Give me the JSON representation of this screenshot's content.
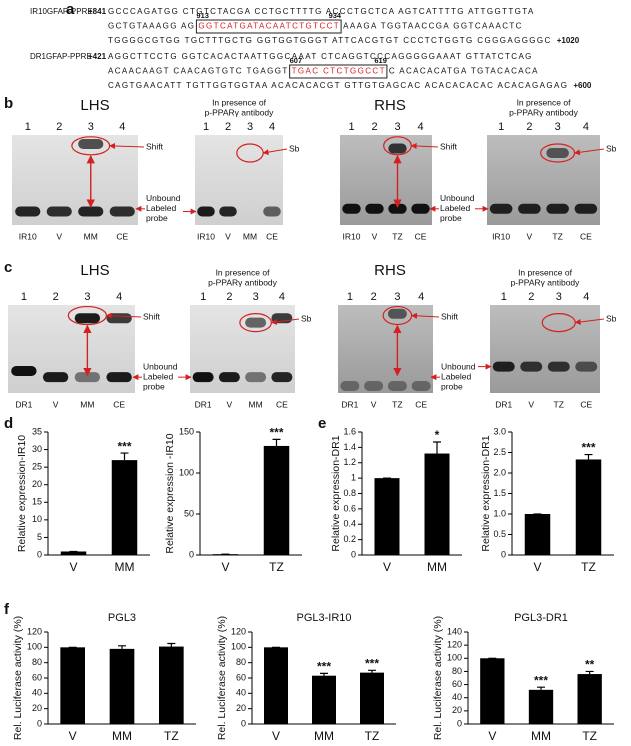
{
  "panel_a": {
    "label": "a",
    "sequences": [
      {
        "name": "IR10GFAP-PPRE",
        "start": "+841",
        "end": "+1020",
        "positions": [
          "913",
          "934"
        ],
        "lines": [
          [
            {
              "text": "GCCCAGATGG CTGTCTACGA CCTGCTTTTG ACCCTGCTCA AGTCATTTTG ATTGGTTGTA"
            }
          ],
          [
            {
              "text": "GCTGTAAAGG AG"
            },
            {
              "text": "GGTCATGATACAATCTGTCCT",
              "highlight": true
            },
            {
              "text": "AAAGA TGGTAACCGA GGTCAAACTC"
            }
          ],
          [
            {
              "text": "TGGGGCGTGG TGCTTTGCTG GGTGGTGGGT ATTCACGTGT CCCTCTGGTG CGGGAGGGGC"
            }
          ]
        ]
      },
      {
        "name": "DR1GFAP-PPRE",
        "start": "+421",
        "end": "+600",
        "positions": [
          "607",
          "619"
        ],
        "lines": [
          [
            {
              "text": "AGGCTTCCTG GGTCACACTAATTGGCAAAT CTCAGGTCCCAGGGGGAAAT GTTATCTCAG"
            }
          ],
          [
            {
              "text": "ACAACAAGT CAACAGTGTC TGAGGT"
            },
            {
              "text": "TGAC CTCTGGCCT",
              "highlight": true
            },
            {
              "text": "C ACACACATGA TGTACACACA"
            }
          ],
          [
            {
              "text": "CAGTGAACATT TGTTGGTGGTAA ACACACACGT GTTGTGAGCAC ACACACACAC ACACAGAGAG"
            }
          ]
        ]
      }
    ]
  },
  "panel_b": {
    "label": "b",
    "left_title": "LHS",
    "right_title": "RHS",
    "gels": [
      {
        "lanes": [
          "1",
          "2",
          "3",
          "4"
        ],
        "samples": [
          "IR10",
          "V",
          "MM",
          "CE"
        ],
        "shift_label": "Shift",
        "probe_label": [
          "Unbound",
          "Labeled",
          "probe"
        ]
      },
      {
        "subtitle": [
          "In presence of",
          "p-PPARγ antibody"
        ],
        "lanes": [
          "1",
          "2",
          "3",
          "4"
        ],
        "samples": [
          "IR10",
          "V",
          "MM",
          "CE"
        ],
        "sb_label": "Sb"
      },
      {
        "lanes": [
          "1",
          "2",
          "3",
          "4"
        ],
        "samples": [
          "IR10",
          "V",
          "TZ",
          "CE"
        ],
        "shift_label": "Shift",
        "probe_label": [
          "Unbound",
          "Labeled",
          "probe"
        ]
      },
      {
        "subtitle": [
          "In presence of",
          "p-PPARγ antibody"
        ],
        "lanes": [
          "1",
          "2",
          "3",
          "4"
        ],
        "samples": [
          "IR10",
          "V",
          "TZ",
          "CE"
        ],
        "sb_label": "Sb"
      }
    ]
  },
  "panel_c": {
    "label": "c",
    "left_title": "LHS",
    "right_title": "RHS",
    "gels": [
      {
        "lanes": [
          "1",
          "2",
          "3",
          "4"
        ],
        "samples": [
          "DR1",
          "V",
          "MM",
          "CE"
        ],
        "shift_label": "Shift",
        "probe_label": [
          "Unbound",
          "Labeled",
          "probe"
        ]
      },
      {
        "subtitle": [
          "In presence of",
          "p-PPARγ antibody"
        ],
        "lanes": [
          "1",
          "2",
          "3",
          "4"
        ],
        "samples": [
          "DR1",
          "V",
          "MM",
          "CE"
        ],
        "sb_label": "Sb"
      },
      {
        "lanes": [
          "1",
          "2",
          "3",
          "4"
        ],
        "samples": [
          "DR1",
          "V",
          "TZ",
          "CE"
        ],
        "shift_label": "Shift",
        "probe_label": [
          "Unbound",
          "Labeled",
          "probe"
        ]
      },
      {
        "subtitle": [
          "In presence of",
          "p-PPARγ antibody"
        ],
        "lanes": [
          "1",
          "2",
          "3",
          "4"
        ],
        "samples": [
          "DR1",
          "V",
          "TZ",
          "CE"
        ],
        "sb_label": "Sb"
      }
    ]
  },
  "panel_d": {
    "label": "d"
  },
  "panel_e": {
    "label": "e"
  },
  "panel_f": {
    "label": "f"
  },
  "chart_data": [
    {
      "type": "bar",
      "ylabel": "Relative  expression-IR10",
      "categories": [
        "V",
        "MM"
      ],
      "values": [
        1,
        27
      ],
      "errors": [
        0,
        2
      ],
      "significance": [
        null,
        "***"
      ],
      "color": "#000000",
      "ylim": [
        0,
        35
      ],
      "yticks": [
        0,
        5,
        10,
        15,
        20,
        25,
        30,
        35
      ]
    },
    {
      "type": "bar",
      "ylabel": "Relative  expression -IR10",
      "categories": [
        "V",
        "TZ"
      ],
      "values": [
        1,
        133
      ],
      "errors": [
        0,
        8
      ],
      "significance": [
        null,
        "***"
      ],
      "color": "#000000",
      "ylim": [
        0,
        150
      ],
      "yticks": [
        0,
        50,
        100,
        150
      ]
    },
    {
      "type": "bar",
      "ylabel": "Relative expression-DR1",
      "categories": [
        "V",
        "MM"
      ],
      "values": [
        1,
        1.32
      ],
      "errors": [
        0,
        0.15
      ],
      "significance": [
        null,
        "*"
      ],
      "color": "#000000",
      "ylim": [
        0,
        1.6
      ],
      "yticks": [
        0,
        0.2,
        0.4,
        0.6,
        0.8,
        1,
        1.2,
        1.4,
        1.6
      ]
    },
    {
      "type": "bar",
      "ylabel": "Relative expression-DR1",
      "categories": [
        "V",
        "TZ"
      ],
      "values": [
        1,
        2.33
      ],
      "errors": [
        0,
        0.12
      ],
      "significance": [
        null,
        "***"
      ],
      "color": "#000000",
      "ylim": [
        0,
        3
      ],
      "yticks": [
        0,
        0.5,
        {
          "value": 1,
          "label": "1.0"
        },
        1.5,
        {
          "value": 2,
          "label": "2.0"
        },
        2.5,
        {
          "value": 3,
          "label": "3.0"
        }
      ]
    },
    {
      "type": "bar",
      "title": "PGL3",
      "ylabel": "Rel. Luciferase activity (%)",
      "categories": [
        "V",
        "MM",
        "TZ"
      ],
      "values": [
        100,
        98,
        101
      ],
      "errors": [
        0,
        4,
        4
      ],
      "significance": [
        null,
        null,
        null
      ],
      "color": "#000000",
      "ylim": [
        0,
        120
      ],
      "yticks": [
        0,
        20,
        40,
        60,
        80,
        100,
        120
      ]
    },
    {
      "type": "bar",
      "title": "PGL3-IR10",
      "ylabel": "Rel. Luciferase activity (%)",
      "categories": [
        "V",
        "MM",
        "TZ"
      ],
      "values": [
        100,
        63,
        67
      ],
      "errors": [
        0,
        3,
        3
      ],
      "significance": [
        null,
        "***",
        "***"
      ],
      "color": "#000000",
      "ylim": [
        0,
        120
      ],
      "yticks": [
        0,
        20,
        40,
        60,
        80,
        100,
        120
      ]
    },
    {
      "type": "bar",
      "title": "PGL3-DR1",
      "ylabel": "Rel. Luciferase activity (%)",
      "categories": [
        "V",
        "MM",
        "TZ"
      ],
      "values": [
        100,
        52,
        76
      ],
      "errors": [
        0,
        4,
        4
      ],
      "significance": [
        null,
        "***",
        "**"
      ],
      "color": "#000000",
      "ylim": [
        0,
        140
      ],
      "yticks": [
        0,
        20,
        40,
        60,
        80,
        100,
        120,
        140
      ]
    }
  ]
}
